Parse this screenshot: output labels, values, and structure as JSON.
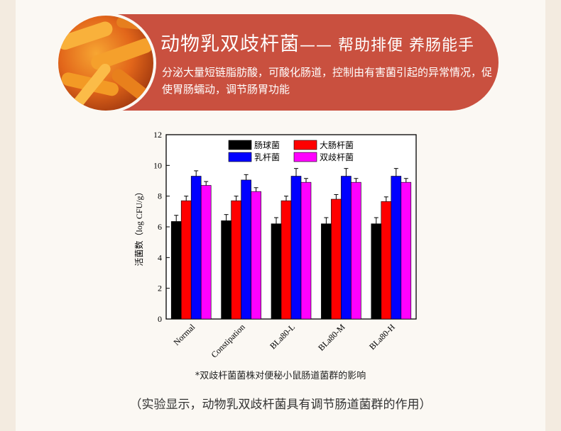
{
  "banner": {
    "title": "动物乳双歧杆菌",
    "subtitle": "—— 帮助排便 养肠能手",
    "description": "分泌大量短链脂肪酸，可酸化肠道，控制由有害菌引起的异常情况，促使胃肠蠕动，调节肠胃功能",
    "color": "#c9503f"
  },
  "chart_data": {
    "type": "bar",
    "ylabel": "活菌数（log CFU/g）",
    "xlabel": "",
    "ylim": [
      0,
      12
    ],
    "yticks": [
      0,
      2,
      4,
      6,
      8,
      10,
      12
    ],
    "categories": [
      "Normal",
      "Constipation",
      "BLa80-L",
      "BLa80-M",
      "BLa80-H"
    ],
    "legend_position": "top-center",
    "series": [
      {
        "name": "肠球菌",
        "color": "#000000",
        "values": [
          6.35,
          6.4,
          6.2,
          6.2,
          6.2
        ],
        "errors": [
          0.4,
          0.4,
          0.4,
          0.4,
          0.4
        ]
      },
      {
        "name": "大肠杆菌",
        "color": "#ff0000",
        "values": [
          7.7,
          7.7,
          7.7,
          7.8,
          7.65
        ],
        "errors": [
          0.3,
          0.3,
          0.3,
          0.3,
          0.3
        ]
      },
      {
        "name": "乳杆菌",
        "color": "#0000ff",
        "values": [
          9.3,
          9.05,
          9.3,
          9.3,
          9.3
        ],
        "errors": [
          0.35,
          0.35,
          0.5,
          0.5,
          0.5
        ]
      },
      {
        "name": "双歧杆菌",
        "color": "#ff00ff",
        "values": [
          8.7,
          8.3,
          8.9,
          8.9,
          8.9
        ],
        "errors": [
          0.25,
          0.25,
          0.25,
          0.25,
          0.25
        ]
      }
    ]
  },
  "caption": "*双歧杆菌菌株对便秘小鼠肠道菌群的影响",
  "footer_note": "（实验显示，动物乳双歧杆菌具有调节肠道菌群的作用）"
}
